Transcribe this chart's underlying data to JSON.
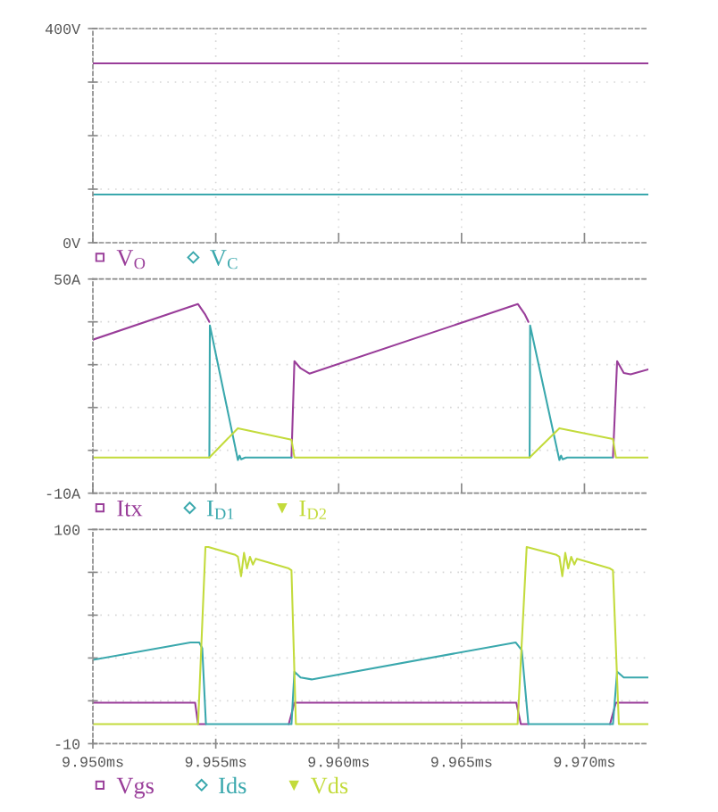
{
  "chart_data": [
    {
      "type": "line",
      "xlim": [
        9.95,
        9.9726
      ],
      "ylim": [
        0,
        400
      ],
      "tick_labels": "y",
      "grid": true,
      "legend": "bottom left",
      "yticks": [
        {
          "value": 0,
          "label": "0V"
        },
        {
          "value": 100,
          "label": null
        },
        {
          "value": 200,
          "label": null
        },
        {
          "value": 300,
          "label": null
        },
        {
          "value": 400,
          "label": "400V"
        }
      ],
      "series": [
        {
          "name": "V$_{O}$",
          "color": "#993d99",
          "x": [
            9.95,
            9.9726
          ],
          "values": [
            335,
            335
          ]
        },
        {
          "name": "V$_{C}$",
          "color": "#3aa8ad",
          "x": [
            9.95,
            9.9726
          ],
          "values": [
            90,
            90
          ]
        }
      ]
    },
    {
      "type": "line",
      "xlim": [
        9.95,
        9.9726
      ],
      "ylim": [
        -10,
        50
      ],
      "tick_labels": "y",
      "grid": true,
      "legend": "bottom left",
      "yticks": [
        {
          "value": -10,
          "label": "-10A"
        },
        {
          "value": 2,
          "label": null
        },
        {
          "value": 14,
          "label": null
        },
        {
          "value": 26,
          "label": null
        },
        {
          "value": 38,
          "label": null
        },
        {
          "value": 50,
          "label": "50A"
        }
      ],
      "series": [
        {
          "name": "Itx",
          "color": "#993d99",
          "x": [
            9.95,
            9.95428,
            9.95458,
            9.95474,
            9.956,
            9.95808,
            9.9582,
            9.95845,
            9.95881,
            9.96728,
            9.96758,
            9.96772,
            9.969,
            9.97116,
            9.97133,
            9.9716,
            9.97188,
            9.9726
          ],
          "values": [
            33,
            43,
            40,
            38,
            null,
            0,
            27,
            25,
            23.5,
            43,
            40,
            38,
            null,
            0,
            27,
            23.7,
            23.3,
            24.7
          ]
        },
        {
          "name": "I$_{D1}$",
          "color": "#3aa8ad",
          "x": [
            9.95474,
            9.95476,
            9.9559,
            9.95597,
            9.95603,
            9.9562,
            9.95808,
            9.962,
            9.96777,
            9.96779,
            9.96898,
            9.96905,
            9.96911,
            9.9693,
            9.97111
          ],
          "values": [
            0,
            37,
            -0.7,
            0.5,
            -0.5,
            0,
            0,
            null,
            0,
            37,
            -0.7,
            0.5,
            -0.5,
            0,
            0
          ]
        },
        {
          "name": "I$_{D2}$",
          "color": "#c3db3c",
          "x": [
            9.95,
            9.95474,
            9.9559,
            9.95808,
            9.9582,
            9.96777,
            9.96898,
            9.97116,
            9.97128,
            9.9726
          ],
          "values": [
            0,
            0,
            8.2,
            5,
            0,
            0,
            8.2,
            5.2,
            0,
            0
          ]
        }
      ]
    },
    {
      "type": "line",
      "xlim": [
        9.95,
        9.9726
      ],
      "ylim": [
        -10,
        100
      ],
      "grid": true,
      "legend": "bottom left",
      "xticks": [
        {
          "value": 9.95,
          "label": "9.950ms"
        },
        {
          "value": 9.955,
          "label": "9.955ms"
        },
        {
          "value": 9.96,
          "label": "9.960ms"
        },
        {
          "value": 9.965,
          "label": "9.965ms"
        },
        {
          "value": 9.97,
          "label": "9.970ms"
        }
      ],
      "yticks": [
        -10,
        {
          "value": 12,
          "label": null
        },
        {
          "value": 34,
          "label": null
        },
        {
          "value": 56,
          "label": null
        },
        {
          "value": 78,
          "label": null
        },
        100
      ],
      "series": [
        {
          "name": "Vgs",
          "color": "#993d99",
          "x": [
            9.95,
            9.95416,
            9.95428,
            9.9546,
            9.956,
            9.95797,
            9.9582,
            9.96723,
            9.96741,
            9.96772,
            9.969,
            9.97104,
            9.97128,
            9.9726
          ],
          "values": [
            11,
            11,
            0,
            0,
            null,
            0,
            11,
            11,
            0,
            0,
            null,
            0,
            11,
            11
          ]
        },
        {
          "name": "Ids",
          "color": "#3aa8ad",
          "x": [
            9.95,
            9.95397,
            9.95433,
            9.95445,
            9.9546,
            9.95808,
            9.9582,
            9.95845,
            9.9589,
            9.9672,
            9.96745,
            9.96772,
            9.97116,
            9.97133,
            9.9716,
            9.9726
          ],
          "values": [
            33,
            42,
            42,
            39,
            0,
            0,
            27,
            24,
            23,
            42,
            38,
            0,
            0,
            27,
            24,
            24
          ]
        },
        {
          "name": "Vds",
          "color": "#c3db3c",
          "x": [
            9.95,
            9.95428,
            9.95458,
            9.9547,
            9.95579,
            9.9559,
            9.95603,
            9.95615,
            9.95627,
            9.95639,
            9.95651,
            9.95663,
            9.95797,
            9.95808,
            9.95826,
            9.96728,
            9.96765,
            9.96886,
            9.96898,
            9.9691,
            9.96922,
            9.96934,
            9.96946,
            9.96959,
            9.9697,
            9.97104,
            9.97116,
            9.9714,
            9.9726
          ],
          "values": [
            0,
            0,
            91,
            91,
            87,
            86,
            76,
            88,
            80,
            86,
            82,
            85,
            80,
            79,
            0,
            0,
            91,
            87,
            86,
            76,
            88,
            80,
            86,
            82,
            85,
            80,
            79,
            0,
            0
          ]
        }
      ]
    }
  ]
}
